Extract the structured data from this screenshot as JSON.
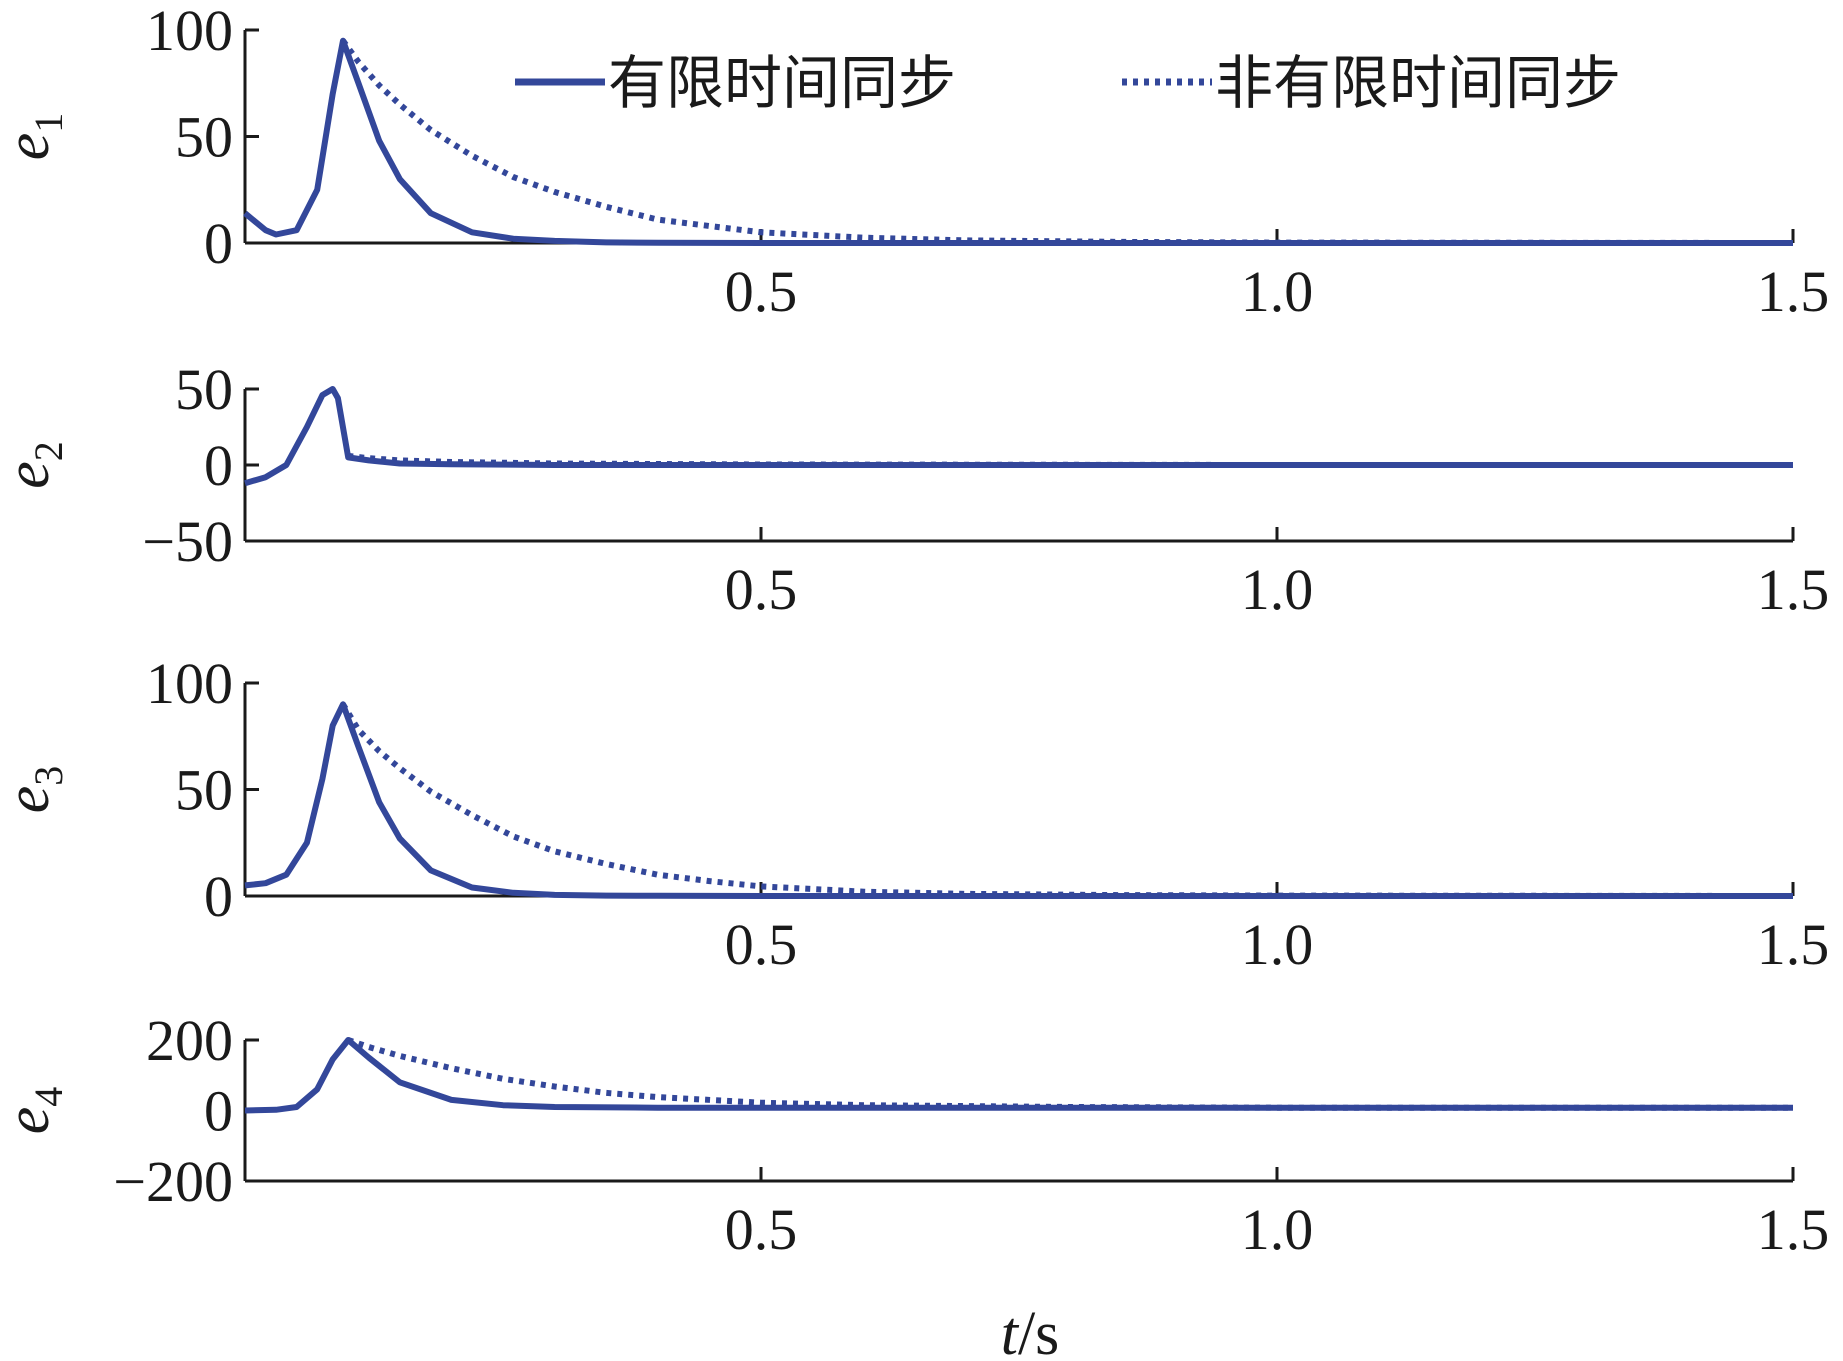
{
  "chart_data": [
    {
      "type": "line",
      "ylabel": "e",
      "ylabel_sub": "1",
      "ylim": [
        0,
        100
      ],
      "yticks": [
        0,
        50,
        100
      ],
      "xlim": [
        0,
        1.5
      ],
      "xticks": [
        0.5,
        1.0,
        1.5
      ],
      "xtick_labels": [
        "0.5",
        "1.0",
        "1.5"
      ],
      "series": [
        {
          "name": "有限时间同步",
          "style": "solid",
          "x": [
            0,
            0.02,
            0.03,
            0.05,
            0.07,
            0.085,
            0.095,
            0.11,
            0.13,
            0.15,
            0.18,
            0.22,
            0.26,
            0.3,
            0.35,
            0.4,
            0.5,
            0.7,
            1.0,
            1.5
          ],
          "y": [
            14,
            6,
            4,
            6,
            25,
            70,
            95,
            75,
            48,
            30,
            14,
            5,
            2,
            1,
            0.3,
            0.1,
            0,
            0,
            0,
            0
          ]
        },
        {
          "name": "非有限时间同步",
          "style": "dotted",
          "x": [
            0.095,
            0.11,
            0.13,
            0.15,
            0.18,
            0.22,
            0.26,
            0.3,
            0.35,
            0.4,
            0.45,
            0.5,
            0.6,
            0.7,
            0.85,
            1.0,
            1.5
          ],
          "y": [
            95,
            85,
            74,
            65,
            53,
            41,
            31,
            24,
            17,
            11,
            8,
            5,
            2.5,
            1.2,
            0.5,
            0.2,
            0
          ]
        }
      ]
    },
    {
      "type": "line",
      "ylabel": "e",
      "ylabel_sub": "2",
      "ylim": [
        -50,
        50
      ],
      "yticks": [
        -50,
        0,
        50
      ],
      "xlim": [
        0,
        1.5
      ],
      "xticks": [
        0.5,
        1.0,
        1.5
      ],
      "xtick_labels": [
        "0.5",
        "1.0",
        "1.5"
      ],
      "series": [
        {
          "name": "有限时间同步",
          "style": "solid",
          "x": [
            0,
            0.02,
            0.04,
            0.06,
            0.075,
            0.085,
            0.09,
            0.1,
            0.12,
            0.15,
            0.2,
            0.3,
            0.5,
            1.0,
            1.5
          ],
          "y": [
            -12,
            -8,
            0,
            25,
            46,
            50,
            44,
            5,
            3,
            1,
            0.5,
            0,
            0,
            0,
            0
          ]
        },
        {
          "name": "非有限时间同步",
          "style": "dotted",
          "x": [
            0.1,
            0.12,
            0.15,
            0.2,
            0.3,
            0.5,
            1.0,
            1.5
          ],
          "y": [
            6,
            4.5,
            3,
            2,
            1,
            0.3,
            0,
            0
          ]
        }
      ]
    },
    {
      "type": "line",
      "ylabel": "e",
      "ylabel_sub": "3",
      "ylim": [
        0,
        100
      ],
      "yticks": [
        0,
        50,
        100
      ],
      "xlim": [
        0,
        1.5
      ],
      "xticks": [
        0.5,
        1.0,
        1.5
      ],
      "xtick_labels": [
        "0.5",
        "1.0",
        "1.5"
      ],
      "series": [
        {
          "name": "有限时间同步",
          "style": "solid",
          "x": [
            0,
            0.02,
            0.04,
            0.06,
            0.075,
            0.085,
            0.095,
            0.11,
            0.13,
            0.15,
            0.18,
            0.22,
            0.26,
            0.3,
            0.35,
            0.4,
            0.5,
            0.7,
            1.0,
            1.5
          ],
          "y": [
            5,
            6,
            10,
            25,
            55,
            80,
            90,
            70,
            44,
            27,
            12,
            4,
            1.5,
            0.5,
            0.2,
            0.1,
            0,
            0,
            0,
            0
          ]
        },
        {
          "name": "非有限时间同步",
          "style": "dotted",
          "x": [
            0.095,
            0.11,
            0.13,
            0.15,
            0.18,
            0.22,
            0.26,
            0.3,
            0.35,
            0.4,
            0.45,
            0.5,
            0.6,
            0.7,
            0.85,
            1.0,
            1.5
          ],
          "y": [
            90,
            78,
            68,
            60,
            49,
            38,
            28,
            21,
            15,
            10,
            7,
            4.5,
            2,
            1,
            0.4,
            0.2,
            0
          ]
        }
      ]
    },
    {
      "type": "line",
      "ylabel": "e",
      "ylabel_sub": "4",
      "ylim": [
        -200,
        200
      ],
      "yticks": [
        -200,
        0,
        200
      ],
      "xlim": [
        0,
        1.5
      ],
      "xticks": [
        0.5,
        1.0,
        1.5
      ],
      "xtick_labels": [
        "0.5",
        "1.0",
        "1.5"
      ],
      "series": [
        {
          "name": "有限时间同步",
          "style": "solid",
          "x": [
            0,
            0.03,
            0.05,
            0.07,
            0.085,
            0.1,
            0.12,
            0.15,
            0.2,
            0.25,
            0.3,
            0.4,
            0.5,
            1.0,
            1.5
          ],
          "y": [
            0,
            2,
            10,
            60,
            145,
            200,
            150,
            80,
            30,
            15,
            10,
            8,
            8,
            8,
            8
          ]
        },
        {
          "name": "非有限时间同步",
          "style": "dotted",
          "x": [
            0.1,
            0.12,
            0.15,
            0.2,
            0.25,
            0.3,
            0.35,
            0.4,
            0.5,
            0.6,
            0.8,
            1.0,
            1.5
          ],
          "y": [
            200,
            180,
            155,
            120,
            90,
            68,
            50,
            38,
            22,
            15,
            10,
            8,
            8
          ]
        }
      ]
    }
  ],
  "legend": {
    "items": [
      {
        "label": "有限时间同步",
        "style": "solid"
      },
      {
        "label": "非有限时间同步",
        "style": "dotted"
      }
    ],
    "placement": "top-right of first panel"
  },
  "xlabel_t": "t",
  "xlabel_unit": "/s",
  "line_color": "#33479a"
}
